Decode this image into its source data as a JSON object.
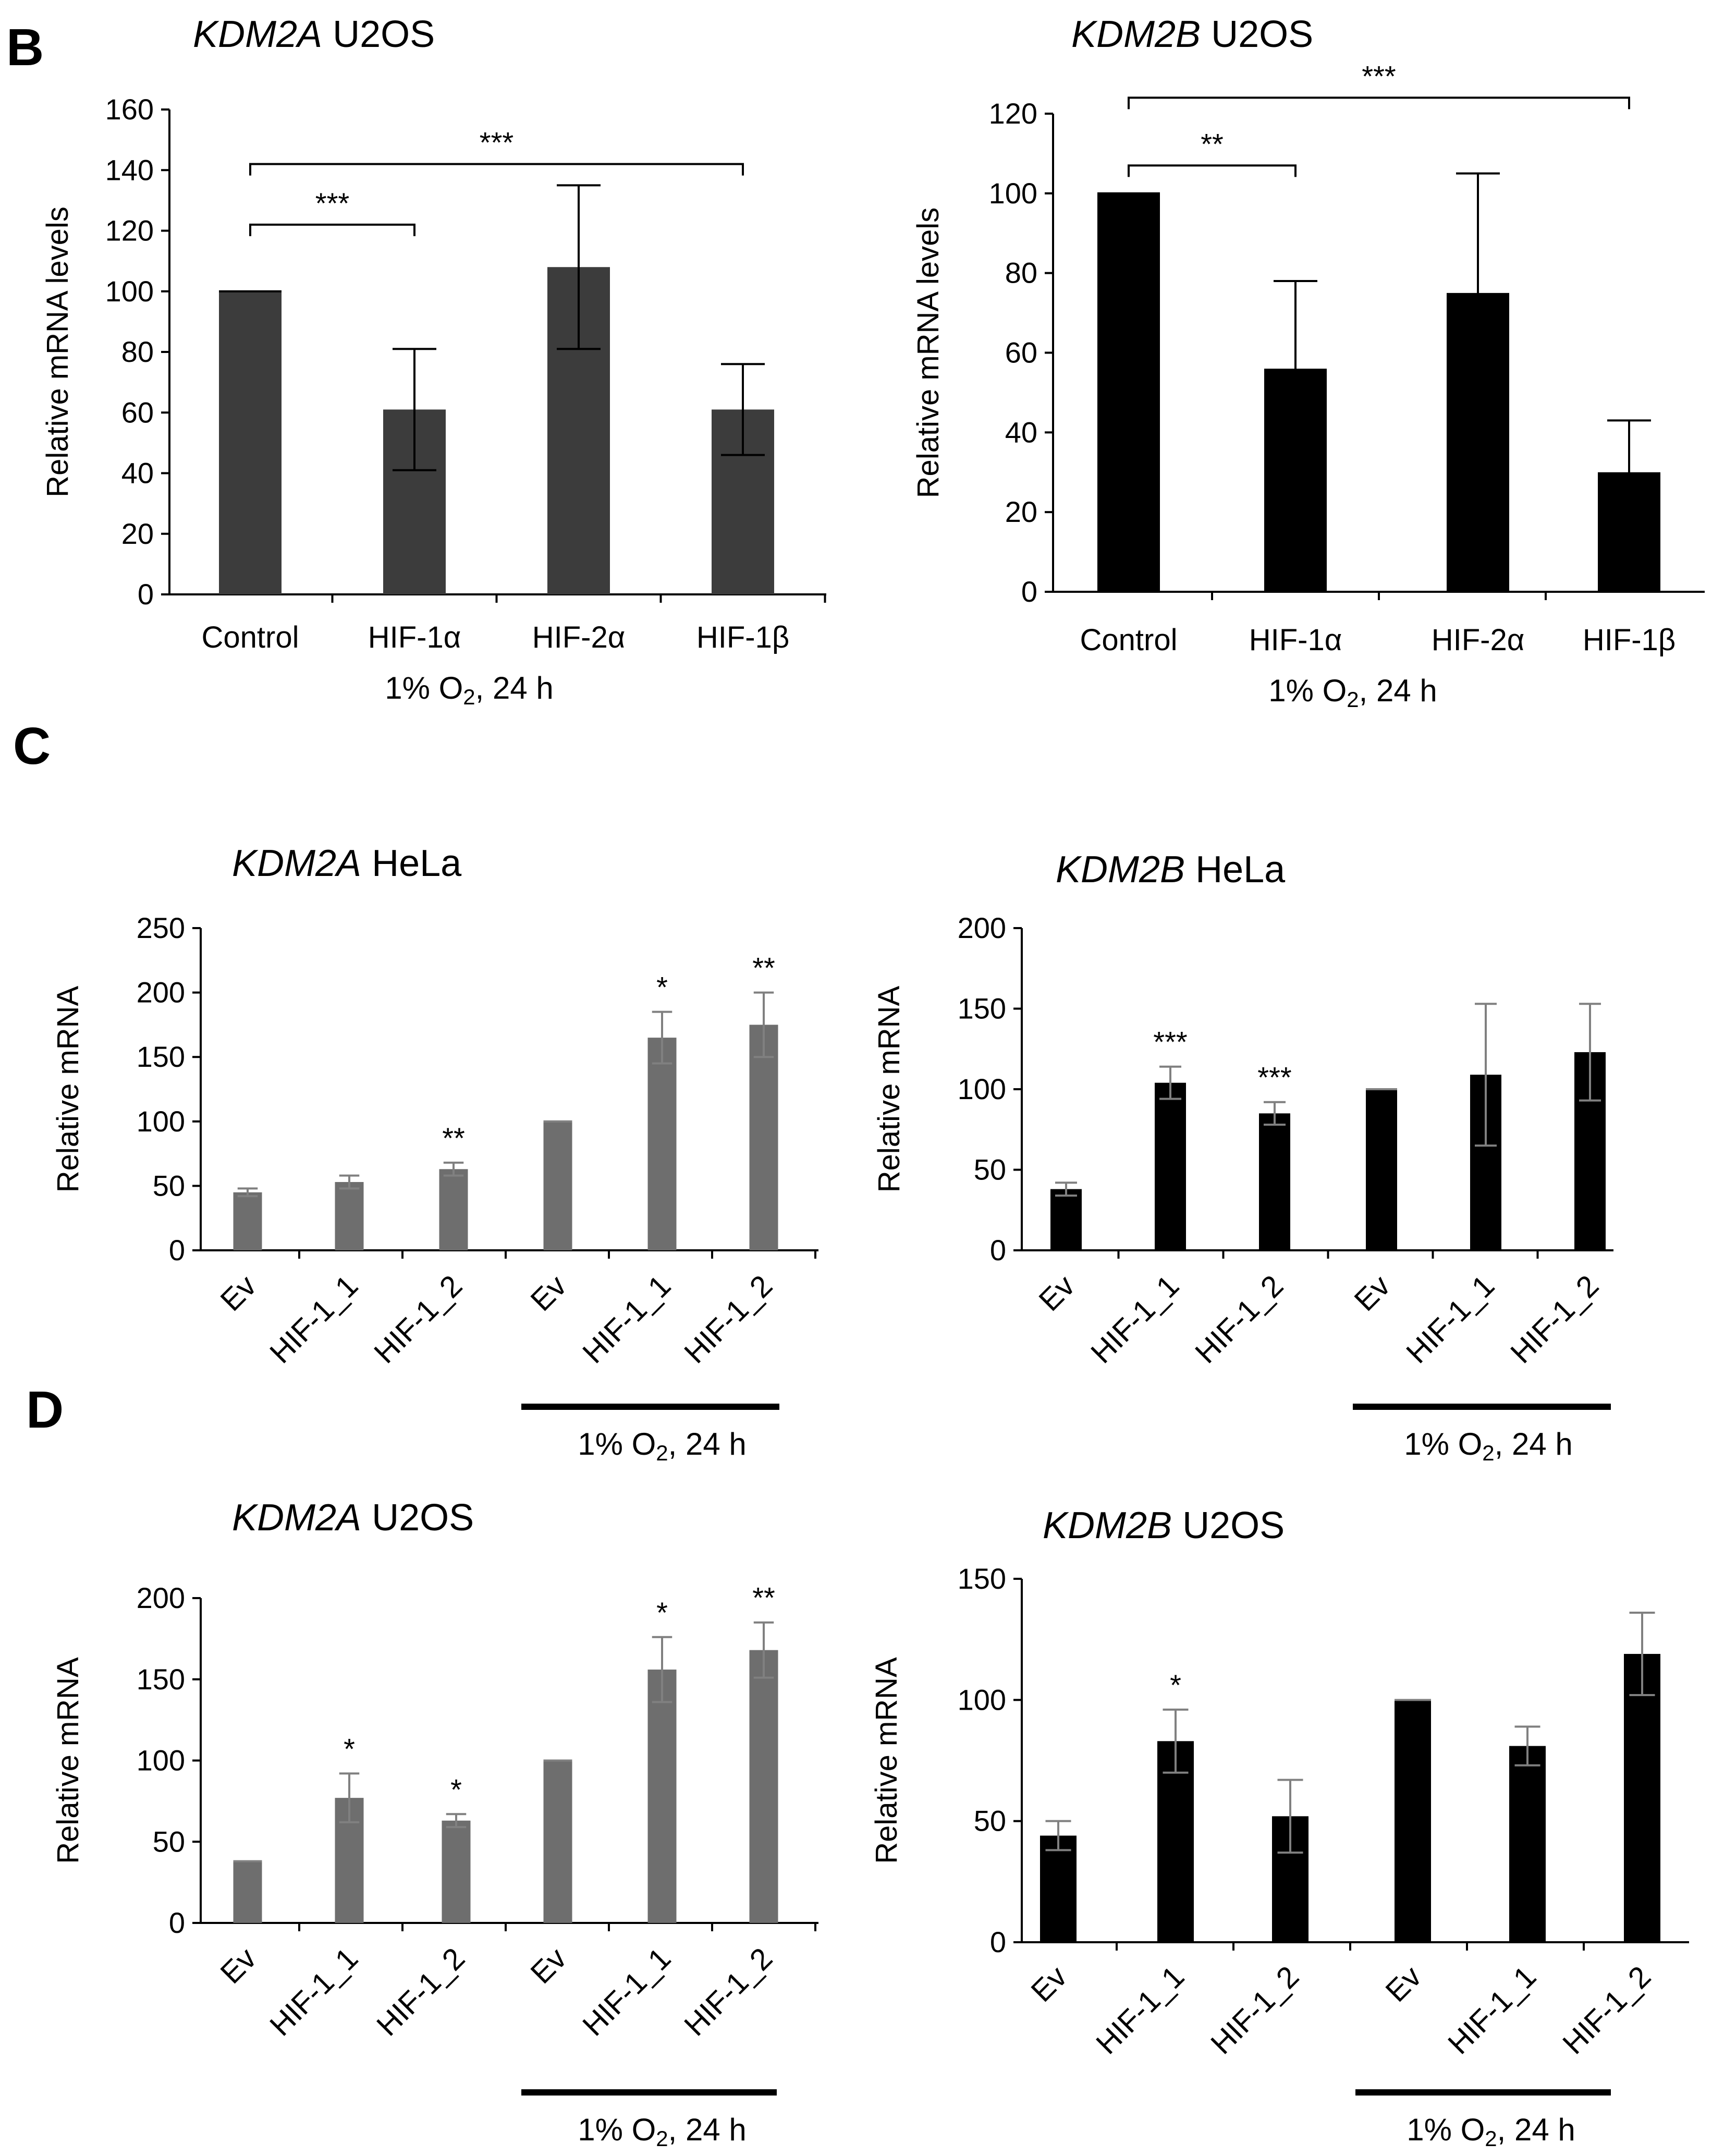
{
  "panels": [
    {
      "letter": "B"
    },
    {
      "letter": "C"
    },
    {
      "letter": "D"
    }
  ],
  "colors": {
    "dark_gray": "#3c3c3c",
    "mid_gray": "#6e6e6e",
    "black": "#000000",
    "error_gray": "#808080"
  },
  "chart_data": [
    {
      "id": "b1",
      "panel": "B",
      "type": "bar",
      "title_italic": "KDM2A",
      "title_rest": " U2OS",
      "ylabel": "Relative mRNA levels",
      "ylim": [
        0,
        160
      ],
      "yticks": [
        0,
        20,
        40,
        60,
        80,
        100,
        120,
        140,
        160
      ],
      "categories": [
        "Control",
        "HIF-1α",
        "HIF-2α",
        "HIF-1β"
      ],
      "values": [
        100,
        61,
        108,
        61
      ],
      "errors": [
        0,
        20,
        27,
        15
      ],
      "condition": "1% O₂, 24 h",
      "significance": [
        {
          "from": 0,
          "to": 1,
          "label": "***",
          "level": 122
        },
        {
          "from": 0,
          "to": 3,
          "label": "***",
          "level": 142
        }
      ],
      "bar_color": "#3c3c3c",
      "error_color": "#000000"
    },
    {
      "id": "b2",
      "panel": "B",
      "type": "bar",
      "title_italic": "KDM2B",
      "title_rest": " U2OS",
      "ylabel": "Relative mRNA levels",
      "ylim": [
        0,
        120
      ],
      "yticks": [
        0,
        20,
        40,
        60,
        80,
        100,
        120
      ],
      "categories": [
        "Control",
        "HIF-1α",
        "HIF-2α",
        "HIF-1β"
      ],
      "values": [
        100,
        56,
        75,
        30
      ],
      "errors": [
        0,
        22,
        30,
        13
      ],
      "condition": "1% O₂, 24 h",
      "significance": [
        {
          "from": 0,
          "to": 1,
          "label": "**",
          "level": 107
        },
        {
          "from": 0,
          "to": 3,
          "label": "***",
          "level": 124
        }
      ],
      "bar_color": "#000000",
      "error_color": "#000000"
    },
    {
      "id": "c1",
      "panel": "C",
      "type": "bar",
      "title_italic": "KDM2A",
      "title_rest": " HeLa",
      "ylabel": "Relative mRNA",
      "ylim": [
        0,
        250
      ],
      "yticks": [
        0,
        50,
        100,
        150,
        200,
        250
      ],
      "categories": [
        "Ev",
        "HIF-1_1",
        "HIF-1_2",
        "Ev",
        "HIF-1_1",
        "HIF-1_2"
      ],
      "values": [
        45,
        53,
        63,
        100,
        165,
        175
      ],
      "errors": [
        3,
        5,
        5,
        0,
        20,
        25
      ],
      "condition": "1% O₂, 24 h",
      "stars": [
        "",
        "",
        "**",
        "",
        "*",
        "**"
      ],
      "bar_color": "#6e6e6e",
      "error_color": "#808080"
    },
    {
      "id": "c2",
      "panel": "C",
      "type": "bar",
      "title_italic": "KDM2B",
      "title_rest": " HeLa",
      "ylabel": "Relative mRNA",
      "ylim": [
        0,
        200
      ],
      "yticks": [
        0,
        50,
        100,
        150,
        200
      ],
      "categories": [
        "Ev",
        "HIF-1_1",
        "HIF-1_2",
        "Ev",
        "HIF-1_1",
        "HIF-1_2"
      ],
      "values": [
        38,
        104,
        85,
        100,
        109,
        123
      ],
      "errors": [
        4,
        10,
        7,
        0,
        44,
        30
      ],
      "condition": "1% O₂, 24 h",
      "stars": [
        "",
        "***",
        "***",
        "",
        "",
        ""
      ],
      "bar_color": "#000000",
      "error_color": "#808080"
    },
    {
      "id": "d1",
      "panel": "D",
      "type": "bar",
      "title_italic": "KDM2A",
      "title_rest": " U2OS",
      "ylabel": "Relative mRNA",
      "ylim": [
        0,
        200
      ],
      "yticks": [
        0,
        50,
        100,
        150,
        200
      ],
      "categories": [
        "Ev",
        "HIF-1_1",
        "HIF-1_2",
        "Ev",
        "HIF-1_1",
        "HIF-1_2"
      ],
      "values": [
        38,
        77,
        63,
        100,
        156,
        168
      ],
      "errors": [
        0,
        15,
        4,
        0,
        20,
        17
      ],
      "condition": "1% O₂, 24 h",
      "stars": [
        "",
        "*",
        "*",
        "",
        "*",
        "**"
      ],
      "bar_color": "#6e6e6e",
      "error_color": "#808080"
    },
    {
      "id": "d2",
      "panel": "D",
      "type": "bar",
      "title_italic": "KDM2B",
      "title_rest": " U2OS",
      "ylabel": "Relative mRNA",
      "ylim": [
        0,
        150
      ],
      "yticks": [
        0,
        50,
        100,
        150
      ],
      "categories": [
        "Ev",
        "HIF-1_1",
        "HIF-1_2",
        "Ev",
        "HIF-1_1",
        "HIF-1_2"
      ],
      "values": [
        44,
        83,
        52,
        100,
        81,
        119
      ],
      "errors": [
        6,
        13,
        15,
        0,
        8,
        17
      ],
      "condition": "1% O₂, 24 h",
      "stars": [
        "",
        "*",
        "",
        "",
        "",
        ""
      ],
      "bar_color": "#000000",
      "error_color": "#808080"
    }
  ]
}
